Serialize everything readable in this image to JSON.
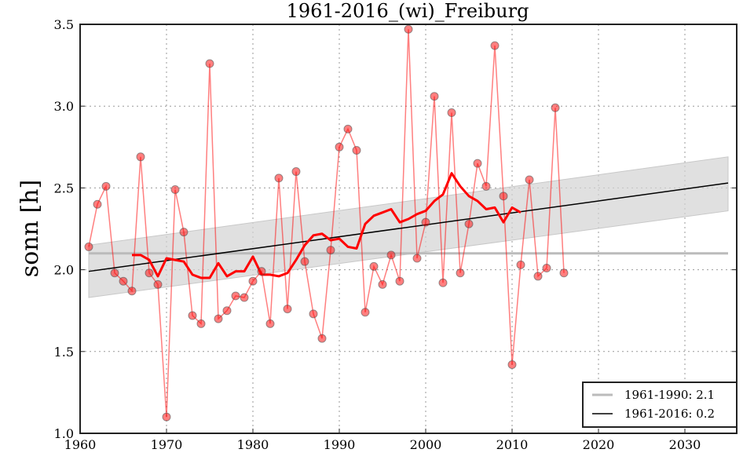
{
  "chart_data": {
    "type": "line",
    "title": "1961-2016_(wi)_Freiburg",
    "xlabel": "",
    "ylabel": "sonn [h]",
    "xlim": [
      1960,
      2036
    ],
    "ylim": [
      1.0,
      3.5
    ],
    "grid": true,
    "x_ticks": [
      "1960",
      "1970",
      "1980",
      "1990",
      "2000",
      "2010",
      "2020",
      "2030"
    ],
    "y_ticks": [
      "1.0",
      "1.5",
      "2.0",
      "2.5",
      "3.0",
      "3.5"
    ],
    "legend_position": "bottom-right",
    "colors": {
      "observed": "#ff0000",
      "moving_average": "#ff0000",
      "baseline": "#bbbbbb",
      "trend": "#000000",
      "band": "#d3d3d3"
    },
    "series": [
      {
        "name": "observed",
        "x": [
          1961,
          1962,
          1963,
          1964,
          1965,
          1966,
          1967,
          1968,
          1969,
          1970,
          1971,
          1972,
          1973,
          1974,
          1975,
          1976,
          1977,
          1978,
          1979,
          1980,
          1981,
          1982,
          1983,
          1984,
          1985,
          1986,
          1987,
          1988,
          1989,
          1990,
          1991,
          1992,
          1993,
          1994,
          1995,
          1996,
          1997,
          1998,
          1999,
          2000,
          2001,
          2002,
          2003,
          2004,
          2005,
          2006,
          2007,
          2008,
          2009,
          2010,
          2011,
          2012,
          2013,
          2014,
          2015,
          2016
        ],
        "values": [
          2.14,
          2.4,
          2.51,
          1.98,
          1.93,
          1.87,
          2.69,
          1.98,
          1.91,
          1.1,
          2.49,
          2.23,
          1.72,
          1.67,
          3.26,
          1.7,
          1.75,
          1.84,
          1.83,
          1.93,
          1.99,
          1.67,
          2.56,
          1.76,
          2.6,
          2.05,
          1.73,
          1.58,
          2.12,
          2.75,
          2.86,
          2.73,
          1.74,
          2.02,
          1.91,
          2.09,
          1.93,
          3.47,
          2.07,
          2.29,
          3.06,
          1.92,
          2.96,
          1.98,
          2.28,
          2.65,
          2.51,
          3.37,
          2.45,
          1.42,
          2.03,
          2.55,
          1.96,
          2.01,
          2.99,
          1.98
        ]
      },
      {
        "name": "moving_average",
        "x": [
          1966,
          1967,
          1968,
          1969,
          1970,
          1971,
          1972,
          1973,
          1974,
          1975,
          1976,
          1977,
          1978,
          1979,
          1980,
          1981,
          1982,
          1983,
          1984,
          1985,
          1986,
          1987,
          1988,
          1989,
          1990,
          1991,
          1992,
          1993,
          1994,
          1995,
          1996,
          1997,
          1998,
          1999,
          2000,
          2001,
          2002,
          2003,
          2004,
          2005,
          2006,
          2007,
          2008,
          2009,
          2010,
          2011
        ],
        "values": [
          2.09,
          2.09,
          2.06,
          1.96,
          2.07,
          2.06,
          2.05,
          1.97,
          1.95,
          1.95,
          2.04,
          1.96,
          1.99,
          1.99,
          2.08,
          1.97,
          1.97,
          1.96,
          1.98,
          2.06,
          2.15,
          2.21,
          2.22,
          2.18,
          2.19,
          2.14,
          2.13,
          2.28,
          2.33,
          2.35,
          2.37,
          2.29,
          2.31,
          2.34,
          2.36,
          2.42,
          2.46,
          2.59,
          2.51,
          2.45,
          2.42,
          2.37,
          2.38,
          2.29,
          2.38,
          2.35
        ]
      },
      {
        "name": "1961-1990: 2.1",
        "x": [
          1961,
          2035
        ],
        "values": [
          2.1,
          2.1
        ]
      },
      {
        "name": "1961-2016: 0.2",
        "x": [
          1961,
          2035
        ],
        "values": [
          1.99,
          2.53
        ]
      }
    ],
    "band": {
      "x": [
        1961,
        2035
      ],
      "upper": [
        2.15,
        2.69
      ],
      "lower": [
        1.83,
        2.36
      ]
    },
    "legend": [
      "1961-1990: 2.1",
      "1961-2016: 0.2"
    ]
  }
}
